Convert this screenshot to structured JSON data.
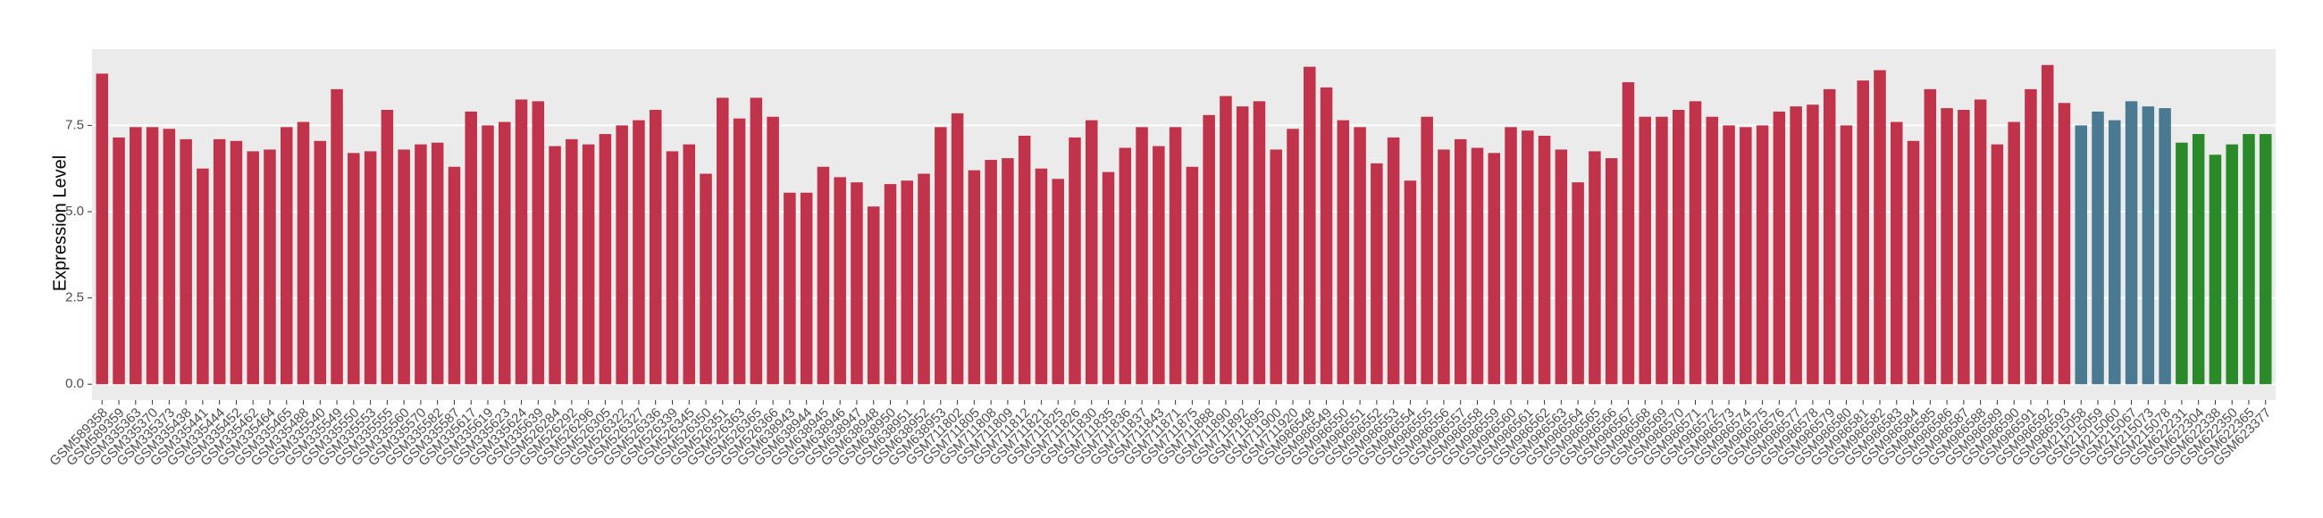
{
  "chart_data": {
    "type": "bar",
    "y_label": "Expression Level",
    "categories": [
      "GSM589358",
      "GSM589359",
      "GSM335363",
      "GSM335370",
      "GSM335373",
      "GSM335438",
      "GSM335441",
      "GSM335444",
      "GSM335452",
      "GSM335462",
      "GSM335464",
      "GSM335465",
      "GSM335488",
      "GSM335540",
      "GSM335549",
      "GSM335550",
      "GSM335553",
      "GSM335555",
      "GSM335560",
      "GSM335570",
      "GSM335582",
      "GSM335587",
      "GSM335617",
      "GSM335619",
      "GSM335623",
      "GSM335624",
      "GSM335639",
      "GSM526284",
      "GSM526292",
      "GSM526296",
      "GSM526305",
      "GSM526322",
      "GSM526327",
      "GSM526336",
      "GSM526339",
      "GSM526345",
      "GSM526350",
      "GSM526351",
      "GSM526363",
      "GSM526365",
      "GSM526366",
      "GSM638943",
      "GSM638944",
      "GSM638945",
      "GSM638946",
      "GSM638947",
      "GSM638948",
      "GSM638950",
      "GSM638951",
      "GSM638952",
      "GSM638953",
      "GSM711802",
      "GSM711805",
      "GSM711808",
      "GSM711809",
      "GSM711812",
      "GSM711821",
      "GSM711825",
      "GSM711826",
      "GSM711830",
      "GSM711835",
      "GSM711836",
      "GSM711837",
      "GSM711843",
      "GSM711871",
      "GSM711875",
      "GSM711888",
      "GSM711890",
      "GSM711892",
      "GSM711895",
      "GSM711900",
      "GSM711920",
      "GSM986548",
      "GSM986549",
      "GSM986550",
      "GSM986551",
      "GSM986552",
      "GSM986553",
      "GSM986554",
      "GSM986555",
      "GSM986556",
      "GSM986557",
      "GSM986558",
      "GSM986559",
      "GSM986560",
      "GSM986561",
      "GSM986562",
      "GSM986563",
      "GSM986564",
      "GSM986565",
      "GSM986566",
      "GSM986567",
      "GSM986568",
      "GSM986569",
      "GSM986570",
      "GSM986571",
      "GSM986572",
      "GSM986573",
      "GSM986574",
      "GSM986575",
      "GSM986576",
      "GSM986577",
      "GSM986578",
      "GSM986579",
      "GSM986580",
      "GSM986581",
      "GSM986582",
      "GSM986583",
      "GSM986584",
      "GSM986585",
      "GSM986586",
      "GSM986587",
      "GSM986588",
      "GSM986589",
      "GSM986590",
      "GSM986591",
      "GSM986592",
      "GSM986593",
      "GSM215058",
      "GSM215059",
      "GSM215060",
      "GSM215067",
      "GSM215073",
      "GSM215078",
      "GSM622231",
      "GSM622304",
      "GSM622338",
      "GSM622350",
      "GSM622365",
      "GSM623377"
    ],
    "values": [
      9.0,
      7.15,
      7.45,
      7.45,
      7.4,
      7.1,
      6.25,
      7.1,
      7.05,
      6.75,
      6.8,
      7.45,
      7.6,
      7.05,
      8.55,
      6.7,
      6.75,
      7.95,
      6.8,
      6.95,
      7.0,
      6.3,
      7.9,
      7.5,
      7.6,
      8.25,
      8.2,
      6.9,
      7.1,
      6.95,
      7.25,
      7.5,
      7.65,
      7.95,
      6.75,
      6.95,
      6.1,
      8.3,
      7.7,
      8.3,
      7.75,
      5.55,
      5.55,
      6.3,
      6.0,
      5.85,
      5.15,
      5.8,
      5.9,
      6.1,
      7.45,
      7.85,
      6.2,
      6.5,
      6.55,
      7.2,
      6.25,
      5.95,
      7.15,
      7.65,
      6.15,
      6.85,
      7.45,
      6.9,
      7.45,
      6.3,
      7.8,
      8.35,
      8.05,
      8.2,
      6.8,
      7.4,
      9.2,
      8.6,
      7.65,
      7.45,
      6.4,
      7.15,
      5.9,
      7.75,
      6.8,
      7.1,
      6.85,
      6.7,
      7.45,
      7.35,
      7.2,
      6.8,
      5.85,
      6.75,
      6.55,
      8.75,
      7.75,
      7.75,
      7.95,
      8.2,
      7.75,
      7.5,
      7.45,
      7.5,
      7.9,
      8.05,
      8.1,
      8.55,
      7.5,
      8.8,
      9.1,
      7.6,
      7.05,
      8.55,
      8.0,
      7.95,
      8.25,
      6.95,
      7.6,
      8.55,
      9.25,
      8.15,
      7.5,
      7.9,
      7.65,
      8.2,
      8.05,
      8.0,
      7.0,
      7.25,
      6.65,
      6.95,
      7.25,
      7.25
    ],
    "colors": [
      "#c0334a",
      "#c0334a",
      "#c0334a",
      "#c0334a",
      "#c0334a",
      "#c0334a",
      "#c0334a",
      "#c0334a",
      "#c0334a",
      "#c0334a",
      "#c0334a",
      "#c0334a",
      "#c0334a",
      "#c0334a",
      "#c0334a",
      "#c0334a",
      "#c0334a",
      "#c0334a",
      "#c0334a",
      "#c0334a",
      "#c0334a",
      "#c0334a",
      "#c0334a",
      "#c0334a",
      "#c0334a",
      "#c0334a",
      "#c0334a",
      "#c0334a",
      "#c0334a",
      "#c0334a",
      "#c0334a",
      "#c0334a",
      "#c0334a",
      "#c0334a",
      "#c0334a",
      "#c0334a",
      "#c0334a",
      "#c0334a",
      "#c0334a",
      "#c0334a",
      "#c0334a",
      "#c0334a",
      "#c0334a",
      "#c0334a",
      "#c0334a",
      "#c0334a",
      "#c0334a",
      "#c0334a",
      "#c0334a",
      "#c0334a",
      "#c0334a",
      "#c0334a",
      "#c0334a",
      "#c0334a",
      "#c0334a",
      "#c0334a",
      "#c0334a",
      "#c0334a",
      "#c0334a",
      "#c0334a",
      "#c0334a",
      "#c0334a",
      "#c0334a",
      "#c0334a",
      "#c0334a",
      "#c0334a",
      "#c0334a",
      "#c0334a",
      "#c0334a",
      "#c0334a",
      "#c0334a",
      "#c0334a",
      "#c0334a",
      "#c0334a",
      "#c0334a",
      "#c0334a",
      "#c0334a",
      "#c0334a",
      "#c0334a",
      "#c0334a",
      "#c0334a",
      "#c0334a",
      "#c0334a",
      "#c0334a",
      "#c0334a",
      "#c0334a",
      "#c0334a",
      "#c0334a",
      "#c0334a",
      "#c0334a",
      "#c0334a",
      "#c0334a",
      "#c0334a",
      "#c0334a",
      "#c0334a",
      "#c0334a",
      "#c0334a",
      "#c0334a",
      "#c0334a",
      "#c0334a",
      "#c0334a",
      "#c0334a",
      "#c0334a",
      "#c0334a",
      "#c0334a",
      "#c0334a",
      "#c0334a",
      "#c0334a",
      "#c0334a",
      "#c0334a",
      "#c0334a",
      "#c0334a",
      "#c0334a",
      "#c0334a",
      "#c0334a",
      "#c0334a",
      "#c0334a",
      "#c0334a",
      "#4a7a92",
      "#4a7a92",
      "#4a7a92",
      "#4a7a92",
      "#4a7a92",
      "#4a7a92",
      "#2a8a2a",
      "#2a8a2a",
      "#2a8a2a",
      "#2a8a2a",
      "#2a8a2a",
      "#2a8a2a"
    ],
    "ylim": [
      -0.46,
      9.71
    ],
    "yticks": [
      {
        "value": 0,
        "label": "0.0"
      },
      2.5,
      {
        "value": 5,
        "label": "5.0"
      },
      7.5
    ],
    "grid": true,
    "panel_background": "#ebebeb"
  }
}
